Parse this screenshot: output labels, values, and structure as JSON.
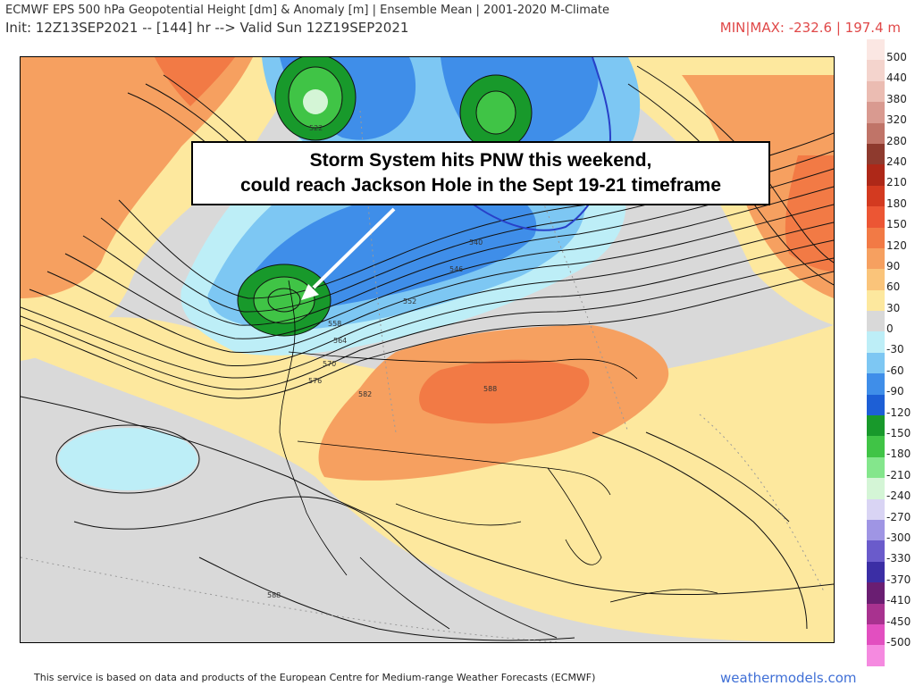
{
  "header": {
    "title": "ECMWF EPS 500 hPa Geopotential Height [dm] & Anomaly [m] | Ensemble Mean | 2001-2020 M-Climate",
    "init_line": "Init: 12Z13SEP2021 -- [144] hr --> Valid Sun 12Z19SEP2021",
    "minmax": "MIN|MAX: -232.6 | 197.4 m"
  },
  "callout": {
    "line1": "Storm System hits PNW this weekend,",
    "line2": "could reach Jackson Hole in the Sept 19-21 timeframe"
  },
  "contour_labels": [
    "522",
    "546",
    "540",
    "552",
    "558",
    "564",
    "570",
    "576",
    "582",
    "588",
    "588"
  ],
  "legend": {
    "items": [
      {
        "label": "500",
        "color": "#fbe7e3"
      },
      {
        "label": "440",
        "color": "#f4d4cd"
      },
      {
        "label": "380",
        "color": "#ebbcb2"
      },
      {
        "label": "320",
        "color": "#d99a90"
      },
      {
        "label": "280",
        "color": "#c07468"
      },
      {
        "label": "240",
        "color": "#8e3a2e"
      },
      {
        "label": "210",
        "color": "#ae2818"
      },
      {
        "label": "180",
        "color": "#d33a20"
      },
      {
        "label": "150",
        "color": "#ec5634"
      },
      {
        "label": "120",
        "color": "#f27a45"
      },
      {
        "label": "90",
        "color": "#f6a060"
      },
      {
        "label": "60",
        "color": "#fac47a"
      },
      {
        "label": "30",
        "color": "#fde89e"
      },
      {
        "label": "0",
        "color": "#d9d9d9"
      },
      {
        "label": "-30",
        "color": "#bdeef7"
      },
      {
        "label": "-60",
        "color": "#7dc7f3"
      },
      {
        "label": "-90",
        "color": "#3f8ee9"
      },
      {
        "label": "-120",
        "color": "#1d5fd6"
      },
      {
        "label": "-150",
        "color": "#18992b"
      },
      {
        "label": "-180",
        "color": "#40c446"
      },
      {
        "label": "-210",
        "color": "#84e68c"
      },
      {
        "label": "-240",
        "color": "#d4f5d6"
      },
      {
        "label": "-270",
        "color": "#d9d4f4"
      },
      {
        "label": "-300",
        "color": "#9f95e4"
      },
      {
        "label": "-330",
        "color": "#6a5bcb"
      },
      {
        "label": "-370",
        "color": "#3b2ea5"
      },
      {
        "label": "-410",
        "color": "#6a1e72"
      },
      {
        "label": "-450",
        "color": "#a8328f"
      },
      {
        "label": "-500",
        "color": "#e24fc0"
      },
      {
        "label": "",
        "color": "#f58ae0"
      }
    ]
  },
  "footer": {
    "note": "This service is based on data and products of the European Centre for Medium-range Weather Forecasts (ECMWF)",
    "brand": "weathermodels.com"
  }
}
